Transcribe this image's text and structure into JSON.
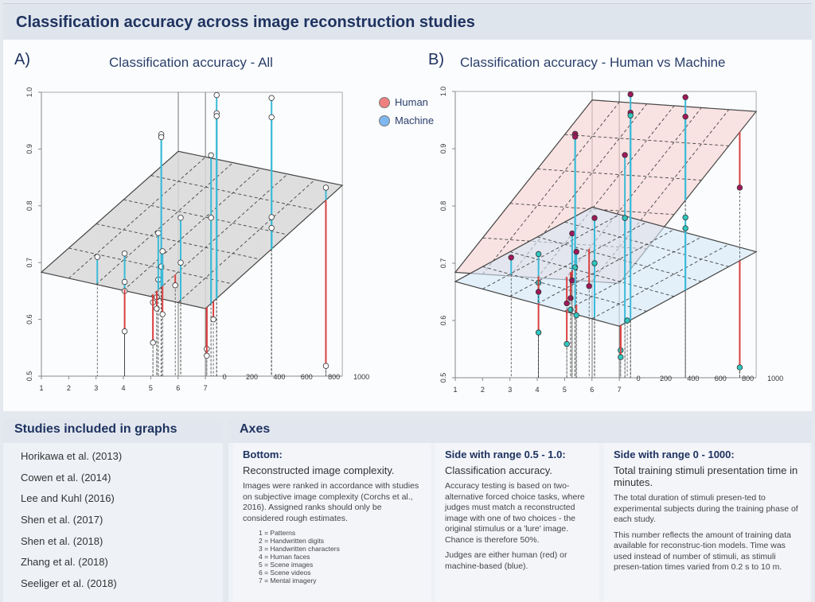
{
  "header": {
    "title": "Classification accuracy across image reconstruction studies"
  },
  "charts": {
    "a": {
      "label": "A)",
      "title": "Classification accuracy - All"
    },
    "b": {
      "label": "B)",
      "title": "Classification accuracy - Human vs Machine"
    }
  },
  "legend": {
    "human": "Human",
    "machine": "Machine"
  },
  "colors": {
    "human": "#f08080",
    "machine": "#7fb8f0",
    "above_plane_stem": "#3bbbd8",
    "below_plane_stem": "#d94040",
    "human_point": "#a0185a",
    "machine_point": "#30c8c0",
    "plane_all": "#d8d8d8",
    "plane_human": "#f8d0d0",
    "plane_machine": "#d4e8f8"
  },
  "chart_data": [
    {
      "type": "scatter3d",
      "title": "Classification accuracy - All",
      "axes": {
        "x": {
          "ticks": [
            "1",
            "2",
            "3",
            "4",
            "5",
            "6",
            "7"
          ],
          "range": [
            1,
            7
          ]
        },
        "y": {
          "ticks": [
            "0.5",
            "0.6",
            "0.7",
            "0.8",
            "0.9",
            "1.0"
          ],
          "range": [
            0.5,
            1.0
          ]
        },
        "z": {
          "ticks": [
            "0",
            "200",
            "400",
            "600",
            "800",
            "1000"
          ],
          "range": [
            0,
            1000
          ]
        }
      },
      "planes": [
        {
          "name": "All",
          "corners": {
            "c1_t0": 0.683,
            "c7_t0": 0.619,
            "c1_t1000": 0.896,
            "c7_t1000": 0.836
          }
        }
      ]
    },
    {
      "type": "scatter3d",
      "title": "Classification accuracy - Human vs Machine",
      "planes": [
        {
          "name": "Human",
          "corners": {
            "c1_t0": 0.684,
            "c7_t0": 0.665,
            "c1_t1000": 0.985,
            "c7_t1000": 0.965
          }
        },
        {
          "name": "Machine",
          "corners": {
            "c1_t0": 0.668,
            "c7_t0": 0.59,
            "c1_t1000": 0.798,
            "c7_t1000": 0.72
          }
        }
      ]
    }
  ],
  "points": [
    {
      "c": 3,
      "t": 9,
      "acc": 0.71,
      "judge": "human"
    },
    {
      "c": 4,
      "t": 9,
      "acc": 0.716,
      "judge": "machine"
    },
    {
      "c": 4,
      "t": 9,
      "acc": 0.666,
      "judge": "machine"
    },
    {
      "c": 4,
      "t": 9,
      "acc": 0.65,
      "judge": "human"
    },
    {
      "c": 4,
      "t": 9,
      "acc": 0.579,
      "judge": "machine"
    },
    {
      "c": 5,
      "t": 16,
      "acc": 0.63,
      "judge": "human"
    },
    {
      "c": 5,
      "t": 16,
      "acc": 0.559,
      "judge": "machine"
    },
    {
      "c": 5,
      "t": 44,
      "acc": 0.639,
      "judge": "human"
    },
    {
      "c": 5,
      "t": 44,
      "acc": 0.619,
      "judge": "machine"
    },
    {
      "c": 5,
      "t": 55,
      "acc": 0.67,
      "judge": "human"
    },
    {
      "c": 5,
      "t": 55,
      "acc": 0.752,
      "judge": "human"
    },
    {
      "c": 5,
      "t": 77,
      "acc": 0.926,
      "judge": "human"
    },
    {
      "c": 5,
      "t": 77,
      "acc": 0.921,
      "judge": "human"
    },
    {
      "c": 5,
      "t": 77,
      "acc": 0.693,
      "judge": "machine"
    },
    {
      "c": 5,
      "t": 86,
      "acc": 0.72,
      "judge": "human"
    },
    {
      "c": 5,
      "t": 86,
      "acc": 0.609,
      "judge": "machine"
    },
    {
      "c": 5,
      "t": 179,
      "acc": 0.66,
      "judge": "human"
    },
    {
      "c": 6,
      "t": 19,
      "acc": 0.779,
      "judge": "human"
    },
    {
      "c": 6,
      "t": 19,
      "acc": 0.7,
      "judge": "machine"
    },
    {
      "c": 7,
      "t": 10,
      "acc": 0.548,
      "judge": "machine"
    },
    {
      "c": 7,
      "t": 10,
      "acc": 0.536,
      "judge": "machine"
    },
    {
      "c": 7,
      "t": 41,
      "acc": 0.889,
      "judge": "human"
    },
    {
      "c": 7,
      "t": 41,
      "acc": 0.779,
      "judge": "machine"
    },
    {
      "c": 7,
      "t": 58,
      "acc": 0.6,
      "judge": "machine"
    },
    {
      "c": 7,
      "t": 82,
      "acc": 0.995,
      "judge": "human"
    },
    {
      "c": 7,
      "t": 82,
      "acc": 0.963,
      "judge": "human"
    },
    {
      "c": 7,
      "t": 82,
      "acc": 0.958,
      "judge": "machine"
    },
    {
      "c": 7,
      "t": 483,
      "acc": 0.99,
      "judge": "human"
    },
    {
      "c": 7,
      "t": 483,
      "acc": 0.956,
      "judge": "human"
    },
    {
      "c": 7,
      "t": 483,
      "acc": 0.78,
      "judge": "machine"
    },
    {
      "c": 7,
      "t": 483,
      "acc": 0.761,
      "judge": "machine"
    },
    {
      "c": 7,
      "t": 880,
      "acc": 0.832,
      "judge": "human"
    },
    {
      "c": 7,
      "t": 880,
      "acc": 0.518,
      "judge": "machine"
    }
  ],
  "studies": {
    "title": "Studies included in graphs",
    "items": [
      "Horikawa et al. (2013)",
      "Cowen et al. (2014)",
      "Lee and Kuhl (2016)",
      "Shen et al. (2017)",
      "Shen et al. (2018)",
      "Zhang et al. (2018)",
      "Seeliger et al. (2018)"
    ]
  },
  "axes_panel": {
    "title": "Axes",
    "bottom": {
      "heading": "Bottom:",
      "sub": "Reconstructed image complexity.",
      "body": "Images were ranked in accordance with studies on subjective image complexity (Corchs et al., 2016). Assigned ranks should only be considered rough estimates.",
      "ranks": [
        "1 = Patterns",
        "2 = Handwritten digits",
        "3 = Handwritten characters",
        "4 = Human faces",
        "5 = Scene images",
        "6 = Scene videos",
        "7 = Mental imagery"
      ]
    },
    "side_acc": {
      "heading": "Side with range 0.5 - 1.0:",
      "sub": "Classification accuracy.",
      "body1": "Accuracy testing is based on two-alternative forced choice tasks, where judges must match a reconstructed image with one of two choices - the original stimulus or a 'lure' image. Chance is therefore 50%.",
      "body2": "Judges are either human (red) or machine-based (blue)."
    },
    "side_time": {
      "heading": "Side with range 0 - 1000:",
      "sub": "Total training stimuli presentation time in minutes.",
      "body1": "The total duration of stimuli presen-ted to experimental subjects during the training phase of each study.",
      "body2": "This number reflects the amount of training data available for reconstruc-tion models. Time was used instead of number of stimuli, as stimuli presen-tation times varied from 0.2 s to 10 m."
    }
  }
}
